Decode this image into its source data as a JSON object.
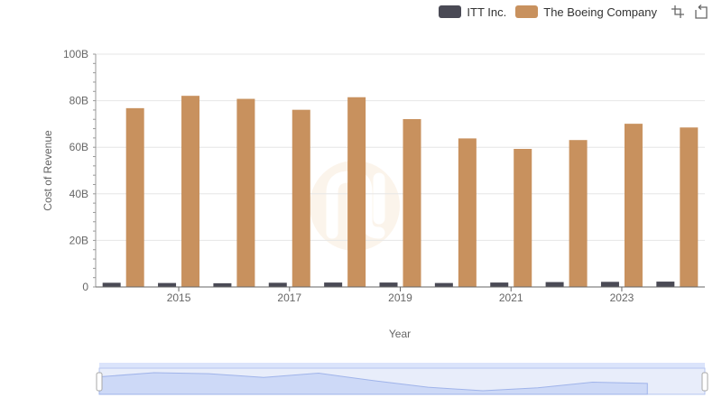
{
  "legend": {
    "series_a": "ITT Inc.",
    "series_b": "The Boeing Company"
  },
  "toolbox": {
    "zoom_icon": "zoom-icon",
    "restore_icon": "restore-icon"
  },
  "colors": {
    "series_a": "#4a4a55",
    "series_b": "#c8915e",
    "zoom_fill": "#dbe4fb",
    "zoom_border": "#b9c8f2"
  },
  "chart_data": {
    "type": "bar",
    "title": "",
    "xlabel": "Year",
    "ylabel": "Cost of Revenue",
    "ylim": [
      0,
      100
    ],
    "y_unit_suffix": "B",
    "categories": [
      "2014",
      "2015",
      "2016",
      "2017",
      "2018",
      "2019",
      "2020",
      "2021",
      "2022",
      "2023",
      "2024"
    ],
    "x_tick_labels": [
      "2015",
      "2017",
      "2019",
      "2021",
      "2023"
    ],
    "y_tick_labels": [
      "0",
      "20B",
      "40B",
      "60B",
      "80B",
      "100B"
    ],
    "series": [
      {
        "name": "ITT Inc.",
        "values": [
          1.8,
          1.7,
          1.6,
          1.8,
          1.9,
          1.9,
          1.7,
          1.9,
          2.1,
          2.2,
          2.3
        ]
      },
      {
        "name": "The Boeing Company",
        "values": [
          76.8,
          82.1,
          80.8,
          76.1,
          81.5,
          72.1,
          63.8,
          59.3,
          63.1,
          70.1,
          68.5
        ]
      }
    ]
  }
}
